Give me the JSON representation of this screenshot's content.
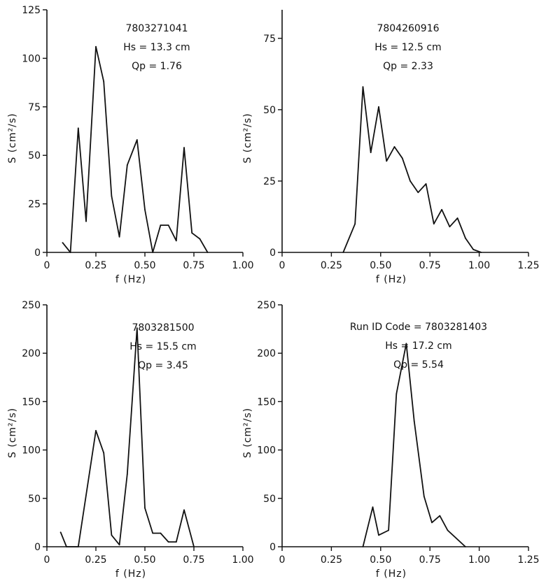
{
  "chart_data": [
    {
      "type": "line",
      "xlabel": "f (Hz)",
      "ylabel": "S (cm²/s)",
      "xlim": [
        0,
        1.0
      ],
      "ylim": [
        0,
        125
      ],
      "xticks": [
        "0",
        "0.25",
        "0.50",
        "0.75",
        "1.00"
      ],
      "yticks": [
        "0",
        "25",
        "50",
        "75",
        "100",
        "125"
      ],
      "annotations": [
        "7803271041",
        "Hs = 13.3 cm",
        "Qp = 1.76"
      ],
      "series": [
        {
          "x": [
            0.08,
            0.12,
            0.16,
            0.2,
            0.25,
            0.29,
            0.33,
            0.37,
            0.41,
            0.46,
            0.5,
            0.54,
            0.58,
            0.62,
            0.66,
            0.7,
            0.74,
            0.78,
            0.82
          ],
          "y": [
            5,
            0,
            64,
            16,
            106,
            88,
            29,
            8,
            45,
            58,
            22,
            0,
            14,
            14,
            6,
            54,
            10,
            7,
            0
          ]
        }
      ]
    },
    {
      "type": "line",
      "xlabel": "f (Hz)",
      "ylabel": "S (cm²/s)",
      "xlim": [
        0,
        1.25
      ],
      "ylim": [
        0,
        85
      ],
      "xticks": [
        "0",
        "0.25",
        "0.50",
        "0.75",
        "1.00",
        "1.25"
      ],
      "yticks": [
        "0",
        "25",
        "50",
        "75"
      ],
      "annotations": [
        "7804260916",
        "Hs = 12.5 cm",
        "Qp = 2.33"
      ],
      "series": [
        {
          "x": [
            0.31,
            0.37,
            0.41,
            0.45,
            0.49,
            0.53,
            0.57,
            0.61,
            0.65,
            0.69,
            0.73,
            0.77,
            0.81,
            0.85,
            0.89,
            0.93,
            0.97,
            1.01
          ],
          "y": [
            0,
            10,
            58,
            35,
            51,
            32,
            37,
            33,
            25,
            21,
            24,
            10,
            15,
            9,
            12,
            5,
            1,
            0
          ]
        }
      ]
    },
    {
      "type": "line",
      "xlabel": "f (Hz)",
      "ylabel": "S (cm²/s)",
      "xlim": [
        0,
        1.0
      ],
      "ylim": [
        0,
        250
      ],
      "xticks": [
        "0",
        "0.25",
        "0.50",
        "0.75",
        "1.00"
      ],
      "yticks": [
        "0",
        "50",
        "100",
        "150",
        "200",
        "250"
      ],
      "annotations": [
        "7803281500",
        "Hs = 15.5 cm",
        "Qp = 3.45"
      ],
      "series": [
        {
          "x": [
            0.07,
            0.1,
            0.16,
            0.25,
            0.29,
            0.33,
            0.37,
            0.41,
            0.46,
            0.5,
            0.54,
            0.58,
            0.62,
            0.66,
            0.7,
            0.75
          ],
          "y": [
            15,
            0,
            0,
            120,
            97,
            12,
            2,
            75,
            226,
            40,
            14,
            14,
            5,
            5,
            38,
            0
          ]
        }
      ]
    },
    {
      "type": "line",
      "xlabel": "f (Hz)",
      "ylabel": "S (cm²/s)",
      "xlim": [
        0,
        1.25
      ],
      "ylim": [
        0,
        250
      ],
      "xticks": [
        "0",
        "0.25",
        "0.50",
        "0.75",
        "1.00",
        "1.25"
      ],
      "yticks": [
        "0",
        "50",
        "100",
        "150",
        "200",
        "250"
      ],
      "annotations": [
        "Run ID Code = 7803281403",
        "Hs = 17.2 cm",
        "Qp = 5.54"
      ],
      "series": [
        {
          "x": [
            0.41,
            0.46,
            0.49,
            0.54,
            0.58,
            0.63,
            0.67,
            0.72,
            0.76,
            0.8,
            0.84,
            0.93
          ],
          "y": [
            0,
            41,
            12,
            17,
            158,
            210,
            130,
            52,
            25,
            32,
            17,
            0
          ]
        }
      ]
    }
  ]
}
